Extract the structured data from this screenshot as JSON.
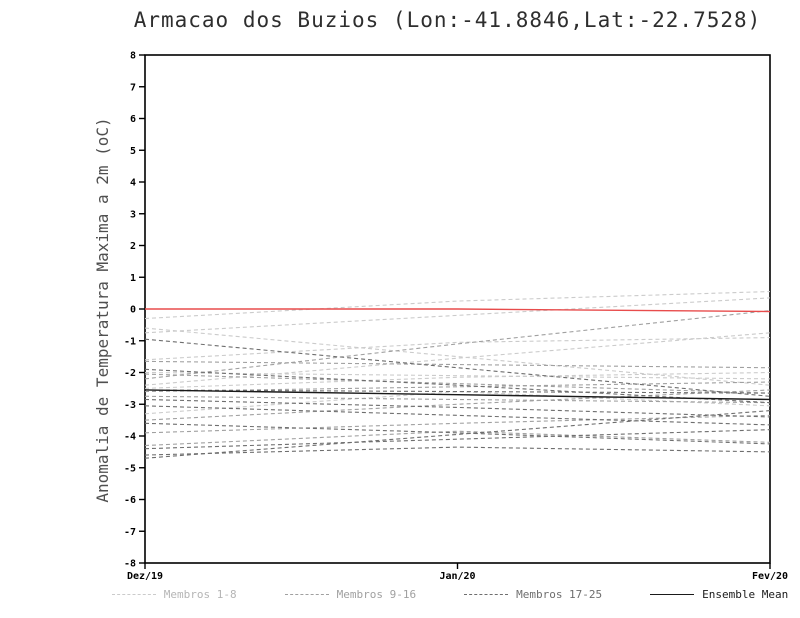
{
  "chart_data": {
    "type": "line",
    "title": "Armacao dos Buzios (Lon:-41.8846,Lat:-22.7528)",
    "xlabel": "",
    "ylabel": "Anomalia de Temperatura Maxima a 2m (oC)",
    "categories": [
      "Dez/19",
      "Jan/20",
      "Fev/20"
    ],
    "ylim": [
      -8,
      8
    ],
    "ytick_step": 1,
    "grid": false,
    "legend_position": "bottom",
    "series_groups": [
      {
        "name": "Membros 1-8",
        "color": "#cbcbcb",
        "style": "dashed",
        "members": [
          [
            -0.3,
            0.25,
            0.55
          ],
          [
            -0.75,
            -0.2,
            0.35
          ],
          [
            -1.6,
            -1.05,
            -0.9
          ],
          [
            -2.4,
            -1.55,
            -0.75
          ],
          [
            -0.6,
            -1.5,
            -2.4
          ],
          [
            -2.5,
            -2.15,
            -2.0
          ],
          [
            -3.3,
            -2.6,
            -3.05
          ],
          [
            -2.0,
            -2.1,
            -2.2
          ]
        ]
      },
      {
        "name": "Membros 9-16",
        "color": "#a0a0a0",
        "style": "dashed",
        "members": [
          [
            -1.65,
            -1.75,
            -1.85
          ],
          [
            -2.05,
            -2.35,
            -2.65
          ],
          [
            -2.6,
            -2.45,
            -2.3
          ],
          [
            -2.75,
            -2.85,
            -2.95
          ],
          [
            -3.5,
            -3.0,
            -2.55
          ],
          [
            -3.9,
            -3.6,
            -3.35
          ],
          [
            -4.3,
            -3.85,
            -4.2
          ],
          [
            -2.2,
            -1.1,
            -0.05
          ]
        ]
      },
      {
        "name": "Membros 17-25",
        "color": "#6e6e6e",
        "style": "dashed",
        "members": [
          [
            -2.55,
            -2.6,
            -2.65
          ],
          [
            -2.85,
            -3.1,
            -3.4
          ],
          [
            -3.05,
            -3.35,
            -3.65
          ],
          [
            -3.6,
            -3.9,
            -4.25
          ],
          [
            -4.4,
            -4.1,
            -3.8
          ],
          [
            -4.6,
            -4.35,
            -4.5
          ],
          [
            -4.7,
            -3.95,
            -3.2
          ],
          [
            -1.9,
            -2.4,
            -2.95
          ],
          [
            -0.95,
            -1.85,
            -2.75
          ]
        ]
      },
      {
        "name": "Ensemble Mean",
        "color": "#1a1a1a",
        "style": "solid",
        "members": [
          [
            -2.55,
            -2.7,
            -2.85
          ]
        ]
      }
    ],
    "extra_series": [
      {
        "name": "red-reference-line",
        "color": "#e84c4c",
        "style": "solid",
        "values": [
          0.0,
          0.0,
          -0.08
        ]
      }
    ]
  }
}
